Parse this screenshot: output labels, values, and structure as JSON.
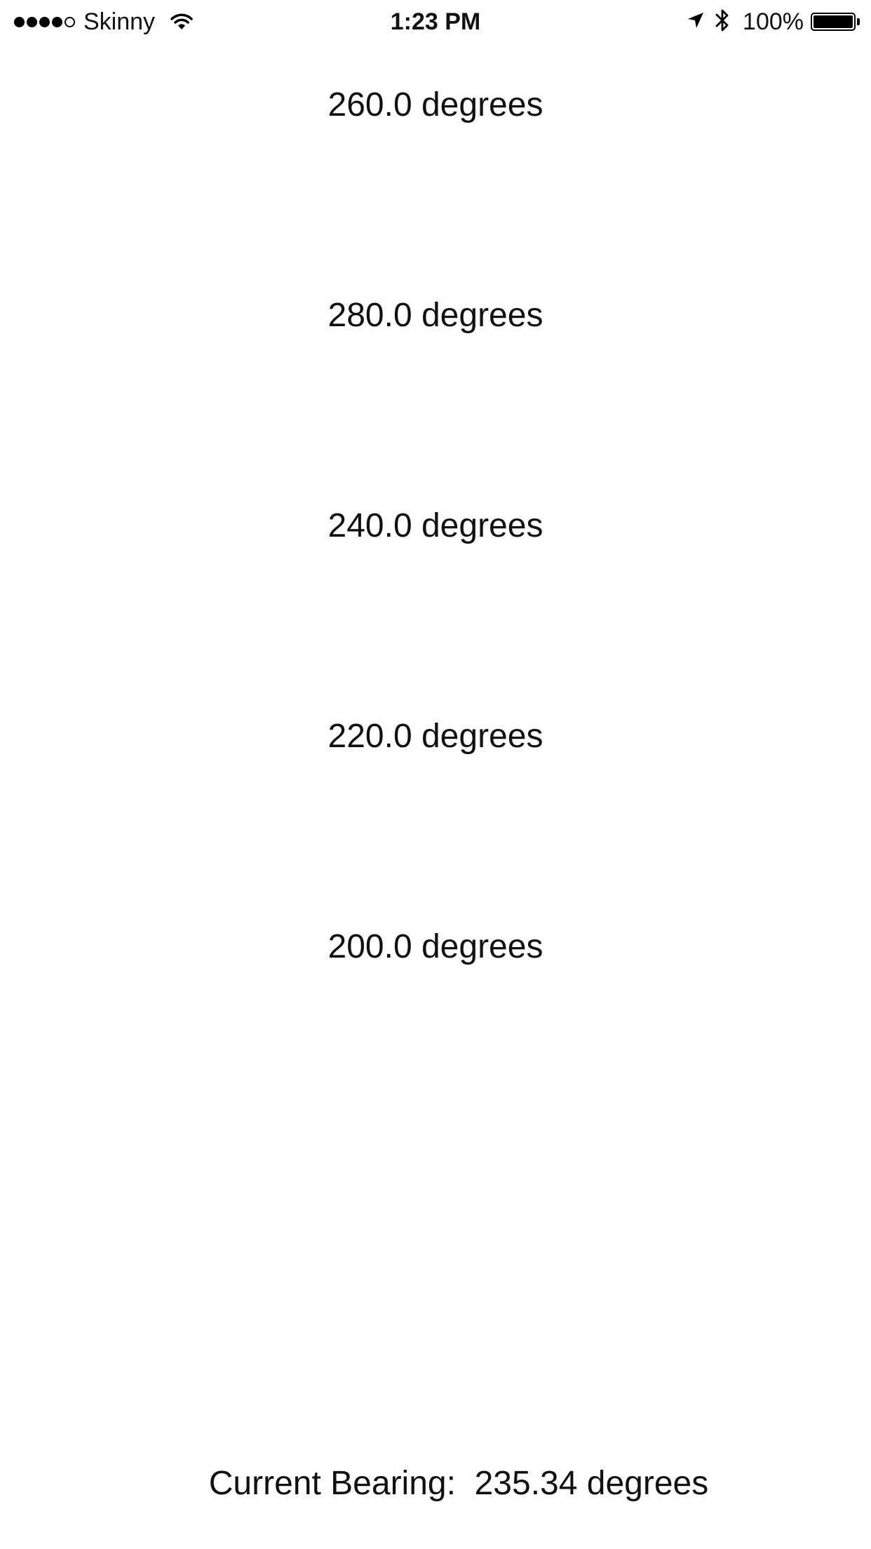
{
  "status_bar": {
    "signal_bars": [
      true,
      true,
      true,
      true,
      false
    ],
    "carrier": "Skinny",
    "time": "1:23 PM",
    "battery_percent_text": "100%",
    "battery_level": 1.0,
    "icons": [
      "signal-dots-icon",
      "wifi-icon",
      "location-arrow-icon",
      "bluetooth-icon",
      "battery-icon"
    ]
  },
  "headings": [
    "260.0 degrees",
    "280.0 degrees",
    "240.0 degrees",
    "220.0 degrees",
    "200.0 degrees"
  ],
  "current_bearing": {
    "text": "Current Bearing:  235.34 degrees"
  }
}
